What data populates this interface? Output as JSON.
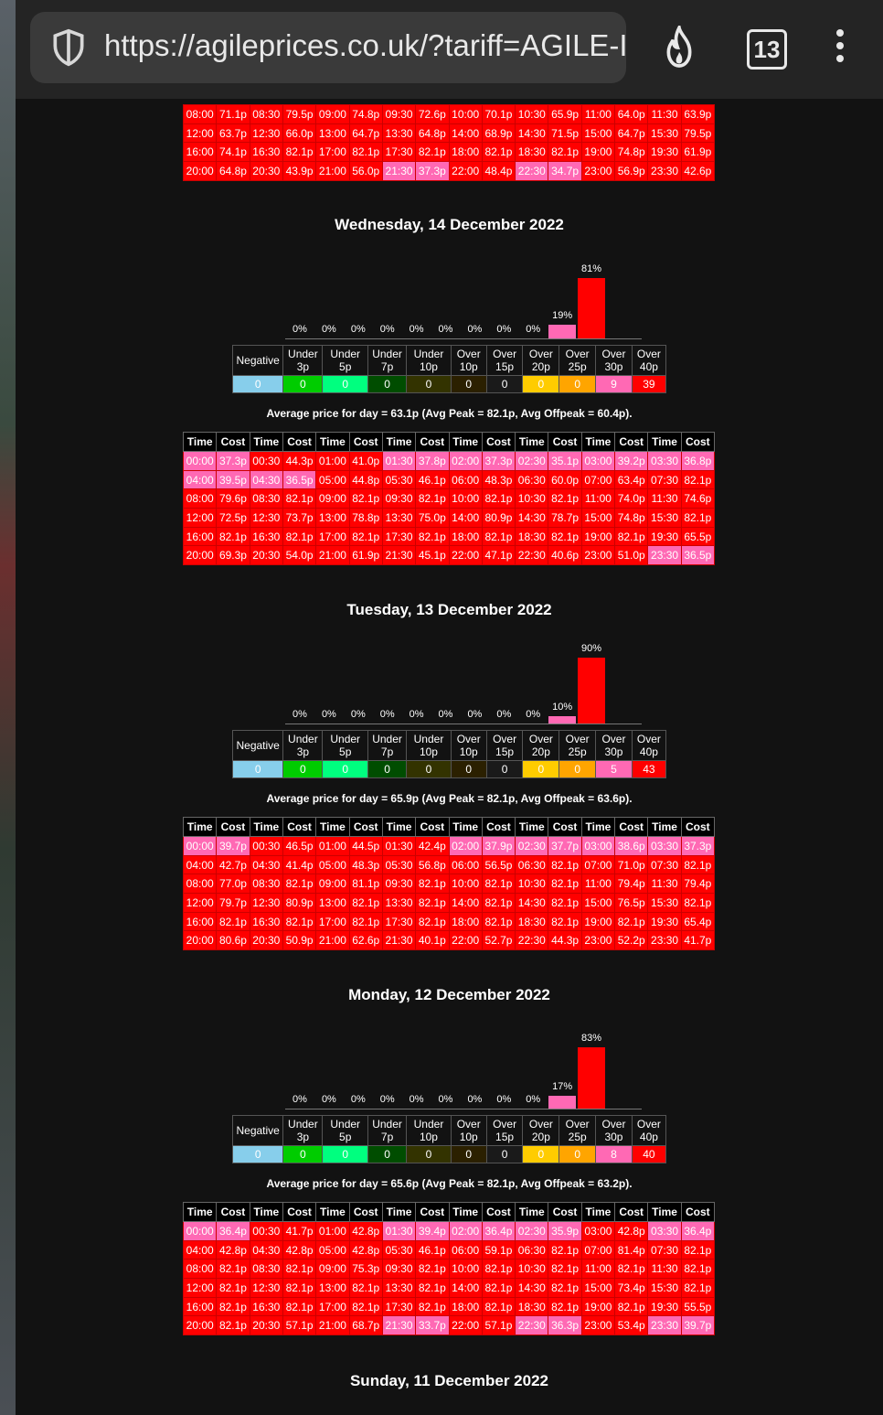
{
  "browser": {
    "url": "https://agileprices.co.uk/?tariff=AGILE-I",
    "tab_count": "13"
  },
  "colors": {
    "red": "#ff0000",
    "pink": "#ff69b4",
    "blue": "#87ceeb",
    "green": "#00cc00",
    "lime": "#00ff7f",
    "darkgreen": "#004d00",
    "olive": "#333300",
    "darkbrown": "#2b2000",
    "yellow": "#ffcc00",
    "orange": "#ffa500"
  },
  "top_fragment": {
    "rows": [
      [
        [
          "08:00",
          "71.1p",
          0
        ],
        [
          "08:30",
          "79.5p",
          0
        ],
        [
          "09:00",
          "74.8p",
          0
        ],
        [
          "09:30",
          "72.6p",
          0
        ],
        [
          "10:00",
          "70.1p",
          0
        ],
        [
          "10:30",
          "65.9p",
          0
        ],
        [
          "11:00",
          "64.0p",
          0
        ],
        [
          "11:30",
          "63.9p",
          0
        ]
      ],
      [
        [
          "12:00",
          "63.7p",
          0
        ],
        [
          "12:30",
          "66.0p",
          0
        ],
        [
          "13:00",
          "64.7p",
          0
        ],
        [
          "13:30",
          "64.8p",
          0
        ],
        [
          "14:00",
          "68.9p",
          0
        ],
        [
          "14:30",
          "71.5p",
          0
        ],
        [
          "15:00",
          "64.7p",
          0
        ],
        [
          "15:30",
          "79.5p",
          0
        ]
      ],
      [
        [
          "16:00",
          "74.1p",
          0
        ],
        [
          "16:30",
          "82.1p",
          0
        ],
        [
          "17:00",
          "82.1p",
          0
        ],
        [
          "17:30",
          "82.1p",
          0
        ],
        [
          "18:00",
          "82.1p",
          0
        ],
        [
          "18:30",
          "82.1p",
          0
        ],
        [
          "19:00",
          "74.8p",
          0
        ],
        [
          "19:30",
          "61.9p",
          0
        ]
      ],
      [
        [
          "20:00",
          "64.8p",
          0
        ],
        [
          "20:30",
          "43.9p",
          0
        ],
        [
          "21:00",
          "56.0p",
          0
        ],
        [
          "21:30",
          "37.3p",
          1
        ],
        [
          "22:00",
          "48.4p",
          0
        ],
        [
          "22:30",
          "34.7p",
          1
        ],
        [
          "23:00",
          "56.9p",
          0
        ],
        [
          "23:30",
          "42.6p",
          0
        ]
      ]
    ]
  },
  "categories": {
    "labels": [
      [
        "Negative",
        ""
      ],
      [
        "Under",
        "3p"
      ],
      [
        "Under",
        "5p"
      ],
      [
        "Under",
        "7p"
      ],
      [
        "Under",
        "10p"
      ],
      [
        "Over",
        "10p"
      ],
      [
        "Over",
        "15p"
      ],
      [
        "Over",
        "20p"
      ],
      [
        "Over",
        "25p"
      ],
      [
        "Over",
        "30p"
      ],
      [
        "Over",
        "40p"
      ]
    ],
    "colors": [
      "#87ceeb",
      "#00cc00",
      "#00ff7f",
      "#004d00",
      "#333300",
      "#2b2000",
      "#1a1a1a",
      "#ffcc00",
      "#ffa500",
      "#ff69b4",
      "#ff0000"
    ]
  },
  "grid_header": [
    "Time",
    "Cost",
    "Time",
    "Cost",
    "Time",
    "Cost",
    "Time",
    "Cost",
    "Time",
    "Cost",
    "Time",
    "Cost",
    "Time",
    "Cost",
    "Time",
    "Cost"
  ],
  "days": [
    {
      "title": "Wednesday, 14 December 2022",
      "bars": [
        "0%",
        "0%",
        "0%",
        "0%",
        "0%",
        "0%",
        "0%",
        "0%",
        "0%",
        "19%",
        "81%"
      ],
      "bar_values": [
        0,
        0,
        0,
        0,
        0,
        0,
        0,
        0,
        0,
        19,
        81
      ],
      "counts": [
        "0",
        "0",
        "0",
        "0",
        "0",
        "0",
        "0",
        "0",
        "0",
        "9",
        "39"
      ],
      "avg": "Average price for day = 63.1p (Avg Peak = 82.1p, Avg Offpeak = 60.4p).",
      "rows": [
        [
          [
            "00:00",
            "37.3p",
            1
          ],
          [
            "00:30",
            "44.3p",
            0
          ],
          [
            "01:00",
            "41.0p",
            0
          ],
          [
            "01:30",
            "37.8p",
            1
          ],
          [
            "02:00",
            "37.3p",
            1
          ],
          [
            "02:30",
            "35.1p",
            1
          ],
          [
            "03:00",
            "39.2p",
            1
          ],
          [
            "03:30",
            "36.8p",
            1
          ]
        ],
        [
          [
            "04:00",
            "39.5p",
            1
          ],
          [
            "04:30",
            "36.5p",
            1
          ],
          [
            "05:00",
            "44.8p",
            0
          ],
          [
            "05:30",
            "46.1p",
            0
          ],
          [
            "06:00",
            "48.3p",
            0
          ],
          [
            "06:30",
            "60.0p",
            0
          ],
          [
            "07:00",
            "63.4p",
            0
          ],
          [
            "07:30",
            "82.1p",
            0
          ]
        ],
        [
          [
            "08:00",
            "79.6p",
            0
          ],
          [
            "08:30",
            "82.1p",
            0
          ],
          [
            "09:00",
            "82.1p",
            0
          ],
          [
            "09:30",
            "82.1p",
            0
          ],
          [
            "10:00",
            "82.1p",
            0
          ],
          [
            "10:30",
            "82.1p",
            0
          ],
          [
            "11:00",
            "74.0p",
            0
          ],
          [
            "11:30",
            "74.6p",
            0
          ]
        ],
        [
          [
            "12:00",
            "72.5p",
            0
          ],
          [
            "12:30",
            "73.7p",
            0
          ],
          [
            "13:00",
            "78.8p",
            0
          ],
          [
            "13:30",
            "75.0p",
            0
          ],
          [
            "14:00",
            "80.9p",
            0
          ],
          [
            "14:30",
            "78.7p",
            0
          ],
          [
            "15:00",
            "74.8p",
            0
          ],
          [
            "15:30",
            "82.1p",
            0
          ]
        ],
        [
          [
            "16:00",
            "82.1p",
            0
          ],
          [
            "16:30",
            "82.1p",
            0
          ],
          [
            "17:00",
            "82.1p",
            0
          ],
          [
            "17:30",
            "82.1p",
            0
          ],
          [
            "18:00",
            "82.1p",
            0
          ],
          [
            "18:30",
            "82.1p",
            0
          ],
          [
            "19:00",
            "82.1p",
            0
          ],
          [
            "19:30",
            "65.5p",
            0
          ]
        ],
        [
          [
            "20:00",
            "69.3p",
            0
          ],
          [
            "20:30",
            "54.0p",
            0
          ],
          [
            "21:00",
            "61.9p",
            0
          ],
          [
            "21:30",
            "45.1p",
            0
          ],
          [
            "22:00",
            "47.1p",
            0
          ],
          [
            "22:30",
            "40.6p",
            0
          ],
          [
            "23:00",
            "51.0p",
            0
          ],
          [
            "23:30",
            "36.5p",
            1
          ]
        ]
      ]
    },
    {
      "title": "Tuesday, 13 December 2022",
      "bars": [
        "0%",
        "0%",
        "0%",
        "0%",
        "0%",
        "0%",
        "0%",
        "0%",
        "0%",
        "10%",
        "90%"
      ],
      "bar_values": [
        0,
        0,
        0,
        0,
        0,
        0,
        0,
        0,
        0,
        10,
        90
      ],
      "counts": [
        "0",
        "0",
        "0",
        "0",
        "0",
        "0",
        "0",
        "0",
        "0",
        "5",
        "43"
      ],
      "avg": "Average price for day = 65.9p (Avg Peak = 82.1p, Avg Offpeak = 63.6p).",
      "rows": [
        [
          [
            "00:00",
            "39.7p",
            1
          ],
          [
            "00:30",
            "46.5p",
            0
          ],
          [
            "01:00",
            "44.5p",
            0
          ],
          [
            "01:30",
            "42.4p",
            0
          ],
          [
            "02:00",
            "37.9p",
            1
          ],
          [
            "02:30",
            "37.7p",
            1
          ],
          [
            "03:00",
            "38.6p",
            1
          ],
          [
            "03:30",
            "37.3p",
            1
          ]
        ],
        [
          [
            "04:00",
            "42.7p",
            0
          ],
          [
            "04:30",
            "41.4p",
            0
          ],
          [
            "05:00",
            "48.3p",
            0
          ],
          [
            "05:30",
            "56.8p",
            0
          ],
          [
            "06:00",
            "56.5p",
            0
          ],
          [
            "06:30",
            "82.1p",
            0
          ],
          [
            "07:00",
            "71.0p",
            0
          ],
          [
            "07:30",
            "82.1p",
            0
          ]
        ],
        [
          [
            "08:00",
            "77.0p",
            0
          ],
          [
            "08:30",
            "82.1p",
            0
          ],
          [
            "09:00",
            "81.1p",
            0
          ],
          [
            "09:30",
            "82.1p",
            0
          ],
          [
            "10:00",
            "82.1p",
            0
          ],
          [
            "10:30",
            "82.1p",
            0
          ],
          [
            "11:00",
            "79.4p",
            0
          ],
          [
            "11:30",
            "79.4p",
            0
          ]
        ],
        [
          [
            "12:00",
            "79.7p",
            0
          ],
          [
            "12:30",
            "80.9p",
            0
          ],
          [
            "13:00",
            "82.1p",
            0
          ],
          [
            "13:30",
            "82.1p",
            0
          ],
          [
            "14:00",
            "82.1p",
            0
          ],
          [
            "14:30",
            "82.1p",
            0
          ],
          [
            "15:00",
            "76.5p",
            0
          ],
          [
            "15:30",
            "82.1p",
            0
          ]
        ],
        [
          [
            "16:00",
            "82.1p",
            0
          ],
          [
            "16:30",
            "82.1p",
            0
          ],
          [
            "17:00",
            "82.1p",
            0
          ],
          [
            "17:30",
            "82.1p",
            0
          ],
          [
            "18:00",
            "82.1p",
            0
          ],
          [
            "18:30",
            "82.1p",
            0
          ],
          [
            "19:00",
            "82.1p",
            0
          ],
          [
            "19:30",
            "65.4p",
            0
          ]
        ],
        [
          [
            "20:00",
            "80.6p",
            0
          ],
          [
            "20:30",
            "50.9p",
            0
          ],
          [
            "21:00",
            "62.6p",
            0
          ],
          [
            "21:30",
            "40.1p",
            0
          ],
          [
            "22:00",
            "52.7p",
            0
          ],
          [
            "22:30",
            "44.3p",
            0
          ],
          [
            "23:00",
            "52.2p",
            0
          ],
          [
            "23:30",
            "41.7p",
            0
          ]
        ]
      ]
    },
    {
      "title": "Monday, 12 December 2022",
      "bars": [
        "0%",
        "0%",
        "0%",
        "0%",
        "0%",
        "0%",
        "0%",
        "0%",
        "0%",
        "17%",
        "83%"
      ],
      "bar_values": [
        0,
        0,
        0,
        0,
        0,
        0,
        0,
        0,
        0,
        17,
        83
      ],
      "counts": [
        "0",
        "0",
        "0",
        "0",
        "0",
        "0",
        "0",
        "0",
        "0",
        "8",
        "40"
      ],
      "avg": "Average price for day = 65.6p (Avg Peak = 82.1p, Avg Offpeak = 63.2p).",
      "rows": [
        [
          [
            "00:00",
            "36.4p",
            1
          ],
          [
            "00:30",
            "41.7p",
            0
          ],
          [
            "01:00",
            "42.8p",
            0
          ],
          [
            "01:30",
            "39.4p",
            1
          ],
          [
            "02:00",
            "36.4p",
            1
          ],
          [
            "02:30",
            "35.9p",
            1
          ],
          [
            "03:00",
            "42.8p",
            0
          ],
          [
            "03:30",
            "36.4p",
            1
          ]
        ],
        [
          [
            "04:00",
            "42.8p",
            0
          ],
          [
            "04:30",
            "42.8p",
            0
          ],
          [
            "05:00",
            "42.8p",
            0
          ],
          [
            "05:30",
            "46.1p",
            0
          ],
          [
            "06:00",
            "59.1p",
            0
          ],
          [
            "06:30",
            "82.1p",
            0
          ],
          [
            "07:00",
            "81.4p",
            0
          ],
          [
            "07:30",
            "82.1p",
            0
          ]
        ],
        [
          [
            "08:00",
            "82.1p",
            0
          ],
          [
            "08:30",
            "82.1p",
            0
          ],
          [
            "09:00",
            "75.3p",
            0
          ],
          [
            "09:30",
            "82.1p",
            0
          ],
          [
            "10:00",
            "82.1p",
            0
          ],
          [
            "10:30",
            "82.1p",
            0
          ],
          [
            "11:00",
            "82.1p",
            0
          ],
          [
            "11:30",
            "82.1p",
            0
          ]
        ],
        [
          [
            "12:00",
            "82.1p",
            0
          ],
          [
            "12:30",
            "82.1p",
            0
          ],
          [
            "13:00",
            "82.1p",
            0
          ],
          [
            "13:30",
            "82.1p",
            0
          ],
          [
            "14:00",
            "82.1p",
            0
          ],
          [
            "14:30",
            "82.1p",
            0
          ],
          [
            "15:00",
            "73.4p",
            0
          ],
          [
            "15:30",
            "82.1p",
            0
          ]
        ],
        [
          [
            "16:00",
            "82.1p",
            0
          ],
          [
            "16:30",
            "82.1p",
            0
          ],
          [
            "17:00",
            "82.1p",
            0
          ],
          [
            "17:30",
            "82.1p",
            0
          ],
          [
            "18:00",
            "82.1p",
            0
          ],
          [
            "18:30",
            "82.1p",
            0
          ],
          [
            "19:00",
            "82.1p",
            0
          ],
          [
            "19:30",
            "55.5p",
            0
          ]
        ],
        [
          [
            "20:00",
            "82.1p",
            0
          ],
          [
            "20:30",
            "57.1p",
            0
          ],
          [
            "21:00",
            "68.7p",
            0
          ],
          [
            "21:30",
            "33.7p",
            1
          ],
          [
            "22:00",
            "57.1p",
            0
          ],
          [
            "22:30",
            "36.3p",
            1
          ],
          [
            "23:00",
            "53.4p",
            0
          ],
          [
            "23:30",
            "39.7p",
            1
          ]
        ]
      ]
    }
  ],
  "next_day_title": "Sunday, 11 December 2022"
}
